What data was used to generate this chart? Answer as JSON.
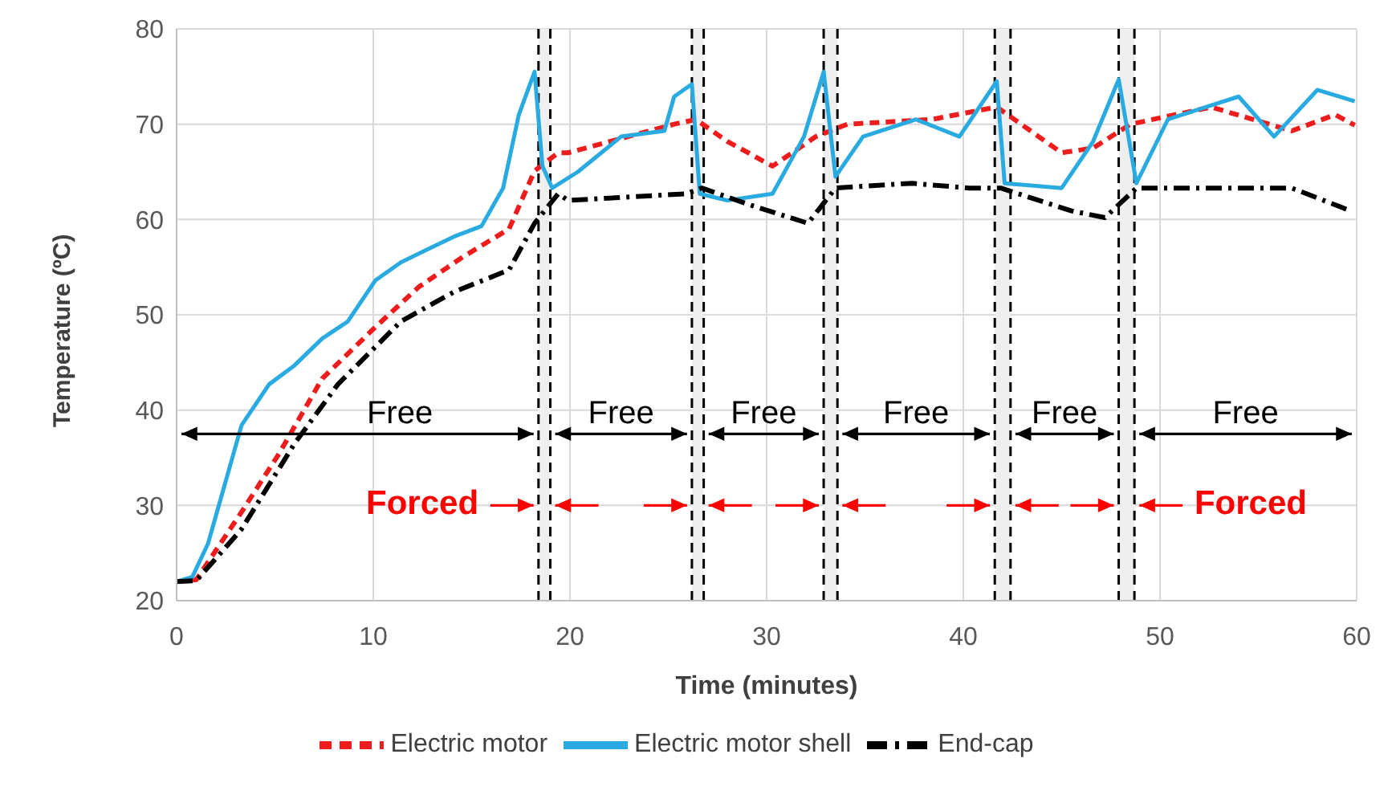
{
  "chart_data": {
    "type": "line",
    "xlabel": "Time (minutes)",
    "ylabel": "Temperature (ºC)",
    "xlim": [
      0,
      60
    ],
    "xticks": [
      0,
      10,
      20,
      30,
      40,
      50,
      60
    ],
    "ylim": [
      20,
      80
    ],
    "yticks": [
      20,
      30,
      40,
      50,
      60,
      70,
      80
    ],
    "grid": true,
    "legend": "bottom",
    "series": [
      {
        "name": "Electric motor",
        "color": "#ee1c1c",
        "line_style": "dashed",
        "x": [
          0,
          1,
          3.3,
          5.2,
          7.4,
          10.1,
          12.3,
          14.5,
          16.9,
          18.2,
          19.4,
          19.9,
          25.3,
          26.4,
          28,
          30.3,
          32.5,
          34.1,
          38.4,
          41.7,
          45,
          46.6,
          48.5,
          52.6,
          56.7,
          58.9,
          59.9
        ],
        "values": [
          22,
          22.2,
          29.3,
          35.4,
          43.3,
          48.7,
          52.9,
          56,
          59,
          65.1,
          67,
          67,
          70,
          70.5,
          68.2,
          65.6,
          68.7,
          70,
          70.5,
          71.8,
          67,
          67.5,
          70,
          71.8,
          69.3,
          71,
          69.9
        ]
      },
      {
        "name": "Electric motor shell",
        "color": "#29abe2",
        "line_style": "solid",
        "x": [
          0,
          0.8,
          1.6,
          3.3,
          4.7,
          6,
          7.4,
          8.7,
          10.1,
          11.4,
          12.8,
          14.1,
          15.5,
          16.6,
          17.4,
          18.2,
          18.6,
          19.1,
          20.4,
          22.6,
          24.8,
          25.3,
          26.2,
          26.6,
          28,
          30.3,
          31.9,
          32.9,
          33.5,
          34.9,
          37.6,
          39.8,
          41.7,
          42.1,
          45,
          46.6,
          47.9,
          48.8,
          50.4,
          54,
          55.8,
          58,
          59.9
        ],
        "values": [
          22,
          22.5,
          26,
          38.4,
          42.7,
          44.7,
          47.5,
          49.3,
          53.6,
          55.5,
          56.9,
          58.2,
          59.3,
          63.3,
          71,
          75.5,
          65.6,
          63.3,
          65,
          68.7,
          69.3,
          72.9,
          74.2,
          62.7,
          62,
          62.7,
          68.7,
          75.5,
          64.5,
          68.7,
          70.5,
          68.7,
          74.5,
          63.8,
          63.3,
          68.2,
          74.7,
          63.8,
          70.5,
          72.9,
          68.7,
          73.6,
          72.4
        ]
      },
      {
        "name": "End-cap",
        "color": "#000000",
        "line_style": "dashed",
        "x": [
          0,
          1,
          3.3,
          6,
          8.2,
          11.4,
          14.1,
          16.9,
          18.2,
          19.4,
          19.9,
          25.9,
          26.7,
          29.2,
          32.1,
          33.5,
          37.4,
          40.3,
          41.9,
          45.5,
          47.2,
          48.8,
          52.6,
          56.7,
          59.7
        ],
        "values": [
          22,
          22.1,
          27.5,
          36.5,
          42.7,
          49.3,
          52.4,
          54.7,
          59.6,
          62.7,
          62,
          62.7,
          63.3,
          61.5,
          59.6,
          63.3,
          63.8,
          63.3,
          63.3,
          60.9,
          60.2,
          63.3,
          63.3,
          63.3,
          60.9
        ]
      }
    ],
    "ref_lines": [
      {
        "axis": "x",
        "value": 18.4,
        "color": "#000000",
        "line_style": "dashed"
      },
      {
        "axis": "x",
        "value": 19.0,
        "color": "#000000",
        "line_style": "dashed"
      },
      {
        "axis": "x",
        "value": 26.2,
        "color": "#000000",
        "line_style": "dashed"
      },
      {
        "axis": "x",
        "value": 26.8,
        "color": "#000000",
        "line_style": "dashed"
      },
      {
        "axis": "x",
        "value": 32.9,
        "color": "#000000",
        "line_style": "dashed"
      },
      {
        "axis": "x",
        "value": 33.6,
        "color": "#000000",
        "line_style": "dashed"
      },
      {
        "axis": "x",
        "value": 41.6,
        "color": "#000000",
        "line_style": "dashed"
      },
      {
        "axis": "x",
        "value": 42.4,
        "color": "#000000",
        "line_style": "dashed"
      },
      {
        "axis": "x",
        "value": 47.9,
        "color": "#000000",
        "line_style": "dashed"
      },
      {
        "axis": "x",
        "value": 48.7,
        "color": "#000000",
        "line_style": "dashed"
      }
    ],
    "bands": [
      {
        "axis": "x",
        "from": 18.4,
        "to": 19.0,
        "color": "#efefef"
      },
      {
        "axis": "x",
        "from": 26.2,
        "to": 26.8,
        "color": "#efefef"
      },
      {
        "axis": "x",
        "from": 32.9,
        "to": 33.6,
        "color": "#efefef"
      },
      {
        "axis": "x",
        "from": 41.6,
        "to": 42.4,
        "color": "#efefef"
      },
      {
        "axis": "x",
        "from": 47.9,
        "to": 48.7,
        "color": "#efefef"
      }
    ],
    "annotations": [
      "Free",
      "Free",
      "Free",
      "Free",
      "Free",
      "Free",
      "Forced",
      "Forced"
    ]
  }
}
